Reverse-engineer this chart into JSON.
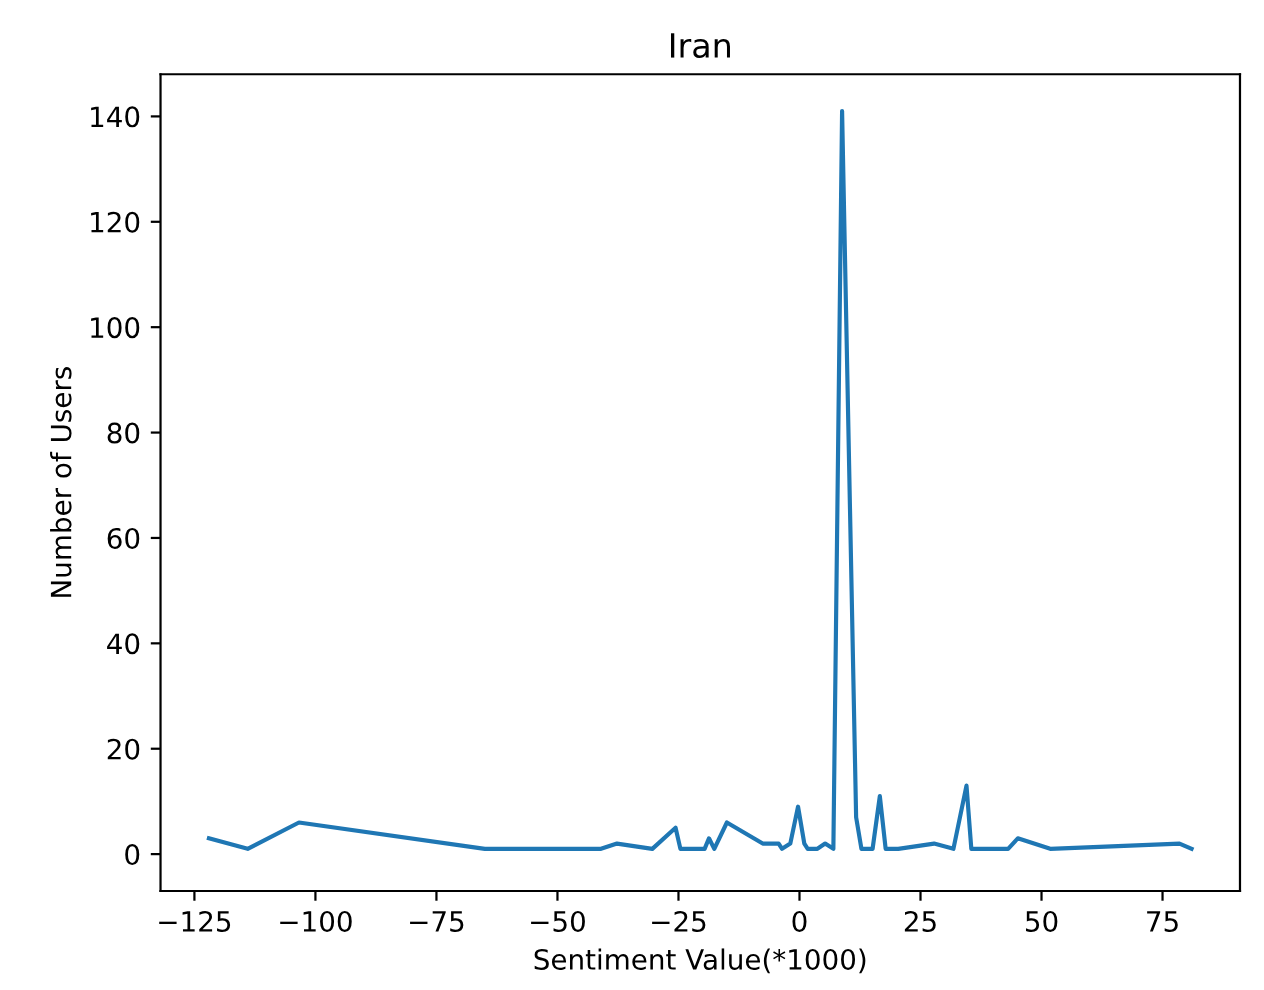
{
  "chart_data": {
    "type": "line",
    "title": "Iran",
    "xlabel": "Sentiment Value(*1000)",
    "ylabel": "Number of Users",
    "series": [
      {
        "color": "#1f77b4",
        "x": [
          -122,
          -114,
          -103.4,
          -65,
          -41,
          -37.7,
          -30.4,
          -25.6,
          -24.6,
          -19.6,
          -18.7,
          -17.6,
          -15,
          -7.6,
          -4.3,
          -3.6,
          -1.9,
          -0.3,
          1,
          1.7,
          3.7,
          5.3,
          7,
          8.8,
          11.7,
          12.8,
          15.1,
          16.6,
          17.8,
          20.4,
          27.8,
          31.8,
          34.5,
          35.5,
          43.1,
          45.1,
          51.8,
          78.5,
          81
        ],
        "values": [
          3,
          1,
          6,
          1,
          1,
          2,
          1,
          5,
          1,
          1,
          3,
          1,
          6,
          2,
          2,
          1,
          2,
          9,
          2,
          1,
          1,
          2,
          1,
          141,
          7,
          1,
          1,
          11,
          1,
          1,
          2,
          1,
          13,
          1,
          1,
          3,
          1,
          2,
          1
        ]
      }
    ],
    "xlim": [
      -132,
      91
    ],
    "ylim": [
      -7,
      148
    ],
    "xticks": [
      {
        "value": -125,
        "label": "−125"
      },
      {
        "value": -100,
        "label": "−100"
      },
      {
        "value": -75,
        "label": "−75"
      },
      {
        "value": -50,
        "label": "−50"
      },
      {
        "value": -25,
        "label": "−25"
      },
      0,
      25,
      50,
      75
    ],
    "yticks": [
      0,
      20,
      40,
      60,
      80,
      100,
      120,
      140
    ],
    "grid": false
  }
}
